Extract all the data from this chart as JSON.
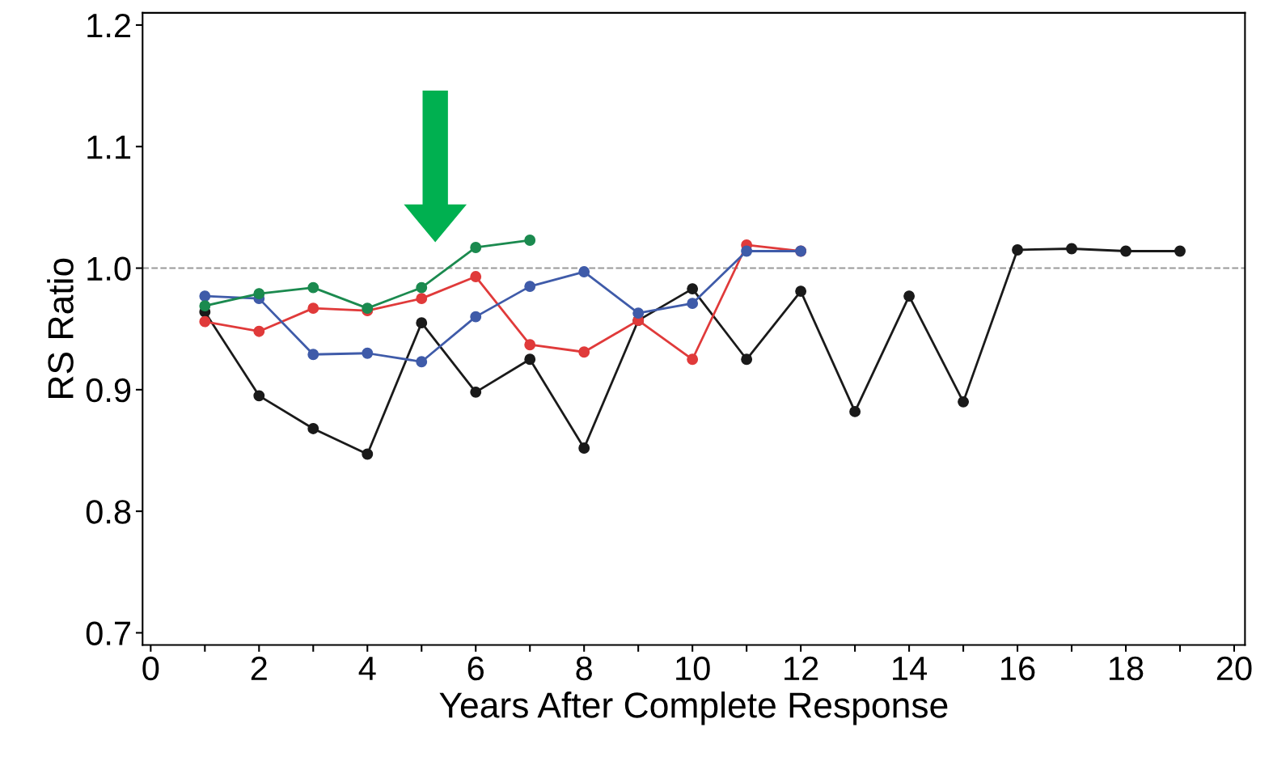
{
  "chart_data": {
    "type": "line",
    "xlabel": "Years After Complete Response",
    "ylabel": "RS Ratio",
    "xlim": [
      -0.15,
      20.2
    ],
    "ylim": [
      0.69,
      1.21
    ],
    "xticks": [
      0,
      {
        "value": 1,
        "label": null
      },
      2,
      {
        "value": 3,
        "label": null
      },
      4,
      {
        "value": 5,
        "label": null
      },
      6,
      {
        "value": 7,
        "label": null
      },
      8,
      {
        "value": 9,
        "label": null
      },
      10,
      {
        "value": 11,
        "label": null
      },
      12,
      {
        "value": 13,
        "label": null
      },
      14,
      {
        "value": 15,
        "label": null
      },
      16,
      {
        "value": 17,
        "label": null
      },
      18,
      {
        "value": 19,
        "label": null
      },
      20
    ],
    "yticks": [
      0.7,
      0.8,
      0.9,
      {
        "value": 1.0,
        "label": "1.0"
      },
      1.1,
      1.2
    ],
    "grid": false,
    "legend": false,
    "marker": "circle",
    "line_style": "solid",
    "ref_lines": [
      {
        "axis": "y",
        "value": 1.0,
        "label": null,
        "color": "#999999",
        "line_style": "dashed"
      }
    ],
    "series": [
      {
        "color": "#1a1a1a",
        "x": [
          1,
          2,
          3,
          4,
          5,
          6,
          7,
          8,
          9,
          10,
          11,
          12,
          13,
          14,
          15,
          16,
          17,
          18,
          19
        ],
        "values": [
          0.964,
          0.895,
          0.868,
          0.847,
          0.955,
          0.898,
          0.925,
          0.852,
          0.957,
          0.983,
          0.925,
          0.981,
          0.882,
          0.977,
          0.89,
          1.015,
          1.016,
          1.014,
          1.014
        ]
      },
      {
        "color": "#e03a3a",
        "x": [
          1,
          2,
          3,
          4,
          5,
          6,
          7,
          8,
          9,
          10,
          11,
          12
        ],
        "values": [
          0.956,
          0.948,
          0.967,
          0.965,
          0.975,
          0.993,
          0.937,
          0.931,
          0.957,
          0.925,
          1.019,
          1.014
        ]
      },
      {
        "color": "#3f5ba9",
        "x": [
          1,
          2,
          3,
          4,
          5,
          6,
          7,
          8,
          9,
          10,
          11,
          12
        ],
        "values": [
          0.977,
          0.975,
          0.929,
          0.93,
          0.923,
          0.96,
          0.985,
          0.997,
          0.963,
          0.971,
          1.014,
          1.014
        ]
      },
      {
        "color": "#1b8a4f",
        "x": [
          1,
          2,
          3,
          4,
          5,
          6,
          7
        ],
        "values": [
          0.969,
          0.979,
          0.984,
          0.967,
          0.984,
          1.017,
          1.023
        ]
      }
    ]
  }
}
